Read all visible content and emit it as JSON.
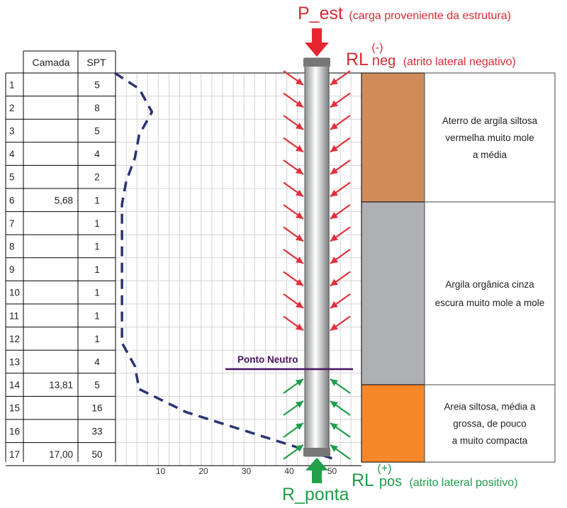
{
  "labels": {
    "p_est": "P_est",
    "p_est_desc": "(carga proveniente da estrutura)",
    "rl_neg": "RL",
    "rl_neg_sup": "(-)",
    "rl_neg_sub": "neg",
    "rl_neg_desc": "(atrito lateral negativo)",
    "rl_pos": "RL",
    "rl_pos_sup": "(+)",
    "rl_pos_sub": "pos",
    "rl_pos_desc": "(atrito lateral positivo)",
    "r_ponta": "R_ponta",
    "ponto_neutro": "Ponto Neutro"
  },
  "table": {
    "header_camada": "Camada",
    "header_spt": "SPT",
    "rows": [
      {
        "depth": "1",
        "camada": "",
        "spt": "5"
      },
      {
        "depth": "2",
        "camada": "",
        "spt": "8"
      },
      {
        "depth": "3",
        "camada": "",
        "spt": "5"
      },
      {
        "depth": "4",
        "camada": "",
        "spt": "4"
      },
      {
        "depth": "5",
        "camada": "",
        "spt": "2"
      },
      {
        "depth": "6",
        "camada": "5,68",
        "spt": "1"
      },
      {
        "depth": "7",
        "camada": "",
        "spt": "1"
      },
      {
        "depth": "8",
        "camada": "",
        "spt": "1"
      },
      {
        "depth": "9",
        "camada": "",
        "spt": "1"
      },
      {
        "depth": "10",
        "camada": "",
        "spt": "1"
      },
      {
        "depth": "11",
        "camada": "",
        "spt": "1"
      },
      {
        "depth": "12",
        "camada": "",
        "spt": "1"
      },
      {
        "depth": "13",
        "camada": "",
        "spt": "4"
      },
      {
        "depth": "14",
        "camada": "13,81",
        "spt": "5"
      },
      {
        "depth": "15",
        "camada": "",
        "spt": "16"
      },
      {
        "depth": "16",
        "camada": "",
        "spt": "33"
      },
      {
        "depth": "17",
        "camada": "17,00",
        "spt": "50"
      }
    ]
  },
  "spt_axis": {
    "ticks": [
      "10",
      "20",
      "30",
      "40",
      "50"
    ],
    "tick_values": [
      10,
      20,
      30,
      40,
      50
    ]
  },
  "layers": [
    {
      "text": [
        "Aterro de argila siltosa",
        "vermelha  muito mole",
        "a  média"
      ],
      "color": "#cf8c5a"
    },
    {
      "text": [
        "Argila orgânica cinza",
        "escura muito mole a mole"
      ],
      "color": "#aeb0b3"
    },
    {
      "text": [
        "Areia siltosa, média a",
        "grossa, de pouco",
        "a  muito compacta"
      ],
      "color": "#f6882a"
    }
  ],
  "colors": {
    "negative_arrow": "#e0303a",
    "positive_arrow": "#1e9e4a",
    "spt_curve": "#2b3474",
    "neutral_line": "#4a1060",
    "title_red": "#d62b35",
    "title_green": "#1e9e4a"
  }
}
